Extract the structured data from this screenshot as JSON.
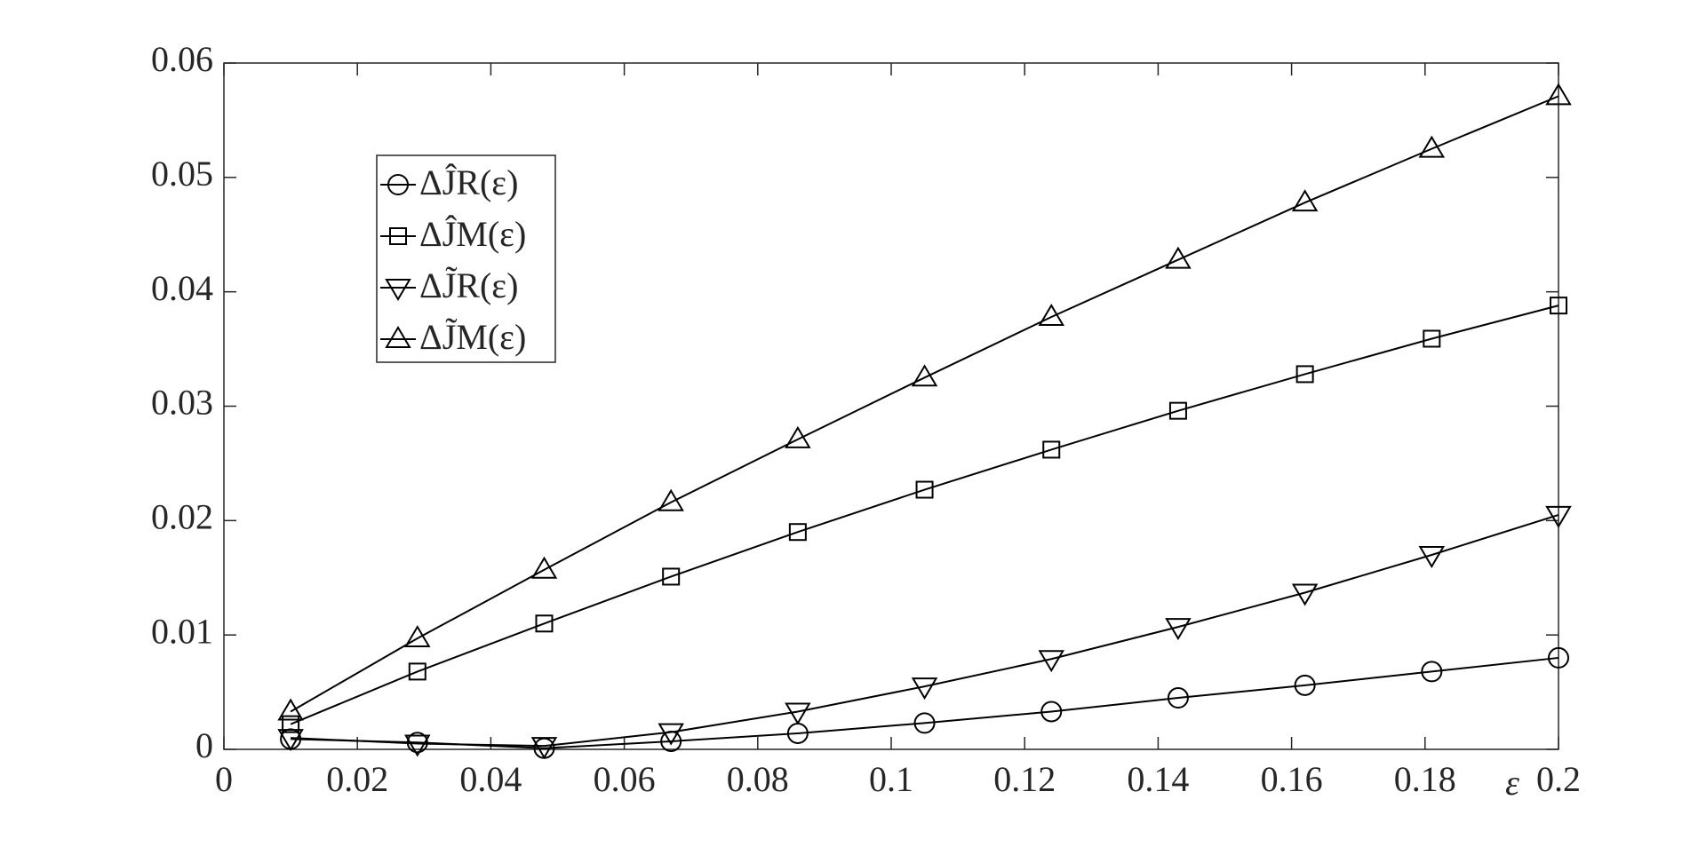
{
  "chart_data": {
    "type": "line",
    "xlabel": "ε",
    "x": [
      0.01,
      0.029,
      0.048,
      0.067,
      0.086,
      0.105,
      0.124,
      0.143,
      0.162,
      0.181,
      0.2
    ],
    "series": [
      {
        "name": "ΔĴR(ε)",
        "color": "#000000",
        "marker": "circle",
        "values": [
          0.0009,
          0.0006,
          0.0001,
          0.0007,
          0.0014,
          0.0023,
          0.0033,
          0.0045,
          0.0056,
          0.0068,
          0.008
        ]
      },
      {
        "name": "ΔĴM(ε)",
        "color": "#000000",
        "marker": "square",
        "values": [
          0.0022,
          0.0068,
          0.011,
          0.0151,
          0.019,
          0.0227,
          0.0262,
          0.0296,
          0.0328,
          0.0359,
          0.0388
        ]
      },
      {
        "name": "ΔJ̃R(ε)",
        "color": "#000000",
        "marker": "triangle-down",
        "values": [
          0.001,
          0.0005,
          0.0003,
          0.0015,
          0.0033,
          0.0055,
          0.0079,
          0.0107,
          0.0137,
          0.017,
          0.0205
        ]
      },
      {
        "name": "ΔJ̃M(ε)",
        "color": "#000000",
        "marker": "triangle-up",
        "values": [
          0.0033,
          0.0097,
          0.0157,
          0.0216,
          0.0271,
          0.0325,
          0.0378,
          0.0428,
          0.0478,
          0.0525,
          0.0571
        ]
      }
    ],
    "xlim": [
      0,
      0.2
    ],
    "xticks": [
      0,
      0.02,
      0.04,
      0.06,
      0.08,
      0.1,
      0.12,
      0.14,
      0.16,
      0.18,
      0.2
    ],
    "ylim": [
      0,
      0.06
    ],
    "yticks": [
      0,
      0.01,
      0.02,
      0.03,
      0.04,
      0.05,
      0.06
    ],
    "grid": false,
    "legend": "upper left"
  }
}
